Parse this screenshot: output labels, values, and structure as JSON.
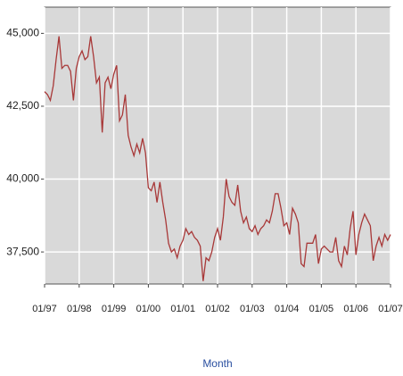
{
  "chart_data": {
    "type": "line",
    "x_label": "Month",
    "x": [
      "1997-01",
      "1997-02",
      "1997-03",
      "1997-04",
      "1997-05",
      "1997-06",
      "1997-07",
      "1997-08",
      "1997-09",
      "1997-10",
      "1997-11",
      "1997-12",
      "1998-01",
      "1998-02",
      "1998-03",
      "1998-04",
      "1998-05",
      "1998-06",
      "1998-07",
      "1998-08",
      "1998-09",
      "1998-10",
      "1998-11",
      "1998-12",
      "1999-01",
      "1999-02",
      "1999-03",
      "1999-04",
      "1999-05",
      "1999-06",
      "1999-07",
      "1999-08",
      "1999-09",
      "1999-10",
      "1999-11",
      "1999-12",
      "2000-01",
      "2000-02",
      "2000-03",
      "2000-04",
      "2000-05",
      "2000-06",
      "2000-07",
      "2000-08",
      "2000-09",
      "2000-10",
      "2000-11",
      "2000-12",
      "2001-01",
      "2001-02",
      "2001-03",
      "2001-04",
      "2001-05",
      "2001-06",
      "2001-07",
      "2001-08",
      "2001-09",
      "2001-10",
      "2001-11",
      "2001-12",
      "2002-01",
      "2002-02",
      "2002-03",
      "2002-04",
      "2002-05",
      "2002-06",
      "2002-07",
      "2002-08",
      "2002-09",
      "2002-10",
      "2002-11",
      "2002-12",
      "2003-01",
      "2003-02",
      "2003-03",
      "2003-04",
      "2003-05",
      "2003-06",
      "2003-07",
      "2003-08",
      "2003-09",
      "2003-10",
      "2003-11",
      "2003-12",
      "2004-01",
      "2004-02",
      "2004-03",
      "2004-04",
      "2004-05",
      "2004-06",
      "2004-07",
      "2004-08",
      "2004-09",
      "2004-10",
      "2004-11",
      "2004-12",
      "2005-01",
      "2005-02",
      "2005-03",
      "2005-04",
      "2005-05",
      "2005-06",
      "2005-07",
      "2005-08",
      "2005-09",
      "2005-10",
      "2005-11",
      "2005-12",
      "2006-01",
      "2006-02",
      "2006-03",
      "2006-04",
      "2006-05",
      "2006-06",
      "2006-07",
      "2006-08",
      "2006-09",
      "2006-10",
      "2006-11",
      "2006-12",
      "2007-01"
    ],
    "series": [
      {
        "color": "#a83838",
        "values": [
          43000,
          42900,
          42700,
          43200,
          44100,
          44900,
          43800,
          43900,
          43900,
          43700,
          42700,
          43800,
          44200,
          44400,
          44100,
          44200,
          44900,
          44200,
          43300,
          43500,
          41600,
          43300,
          43500,
          43100,
          43600,
          43900,
          42000,
          42200,
          42900,
          41500,
          41100,
          40800,
          41200,
          40900,
          41400,
          40900,
          39700,
          39600,
          39900,
          39200,
          39900,
          39200,
          38600,
          37800,
          37500,
          37600,
          37300,
          37700,
          37900,
          38300,
          38100,
          38200,
          38000,
          37900,
          37700,
          36500,
          37300,
          37200,
          37500,
          38000,
          38300,
          37900,
          38700,
          40000,
          39400,
          39200,
          39100,
          39800,
          38900,
          38500,
          38700,
          38300,
          38200,
          38400,
          38100,
          38300,
          38400,
          38600,
          38500,
          38900,
          39500,
          39500,
          39000,
          38400,
          38500,
          38100,
          39000,
          38800,
          38500,
          37100,
          37000,
          37800,
          37800,
          37800,
          38100,
          37100,
          37600,
          37700,
          37600,
          37500,
          37500,
          38000,
          37200,
          37000,
          37700,
          37400,
          38300,
          38900,
          37400,
          38100,
          38500,
          38800,
          38600,
          38400,
          37200,
          37700,
          38000,
          37700,
          38100,
          37900,
          38100
        ]
      }
    ],
    "xlim": [
      "1997-01",
      "2007-01"
    ],
    "xticks": [
      {
        "value": "1997-01",
        "label": "01/97"
      },
      {
        "value": "1998-01",
        "label": "01/98"
      },
      {
        "value": "1999-01",
        "label": "01/99"
      },
      {
        "value": "2000-01",
        "label": "01/00"
      },
      {
        "value": "2001-01",
        "label": "01/01"
      },
      {
        "value": "2002-01",
        "label": "01/02"
      },
      {
        "value": "2003-01",
        "label": "01/03"
      },
      {
        "value": "2004-01",
        "label": "01/04"
      },
      {
        "value": "2005-01",
        "label": "01/05"
      },
      {
        "value": "2006-01",
        "label": "01/06"
      },
      {
        "value": "2007-01",
        "label": "01/07"
      }
    ],
    "ylim": [
      36400,
      45900
    ],
    "yticks": [
      {
        "value": 37500,
        "label": "37,500"
      },
      {
        "value": 40000,
        "label": "40,000"
      },
      {
        "value": 42500,
        "label": "42,500"
      },
      {
        "value": 45000,
        "label": "45,000"
      }
    ],
    "grid": true
  }
}
